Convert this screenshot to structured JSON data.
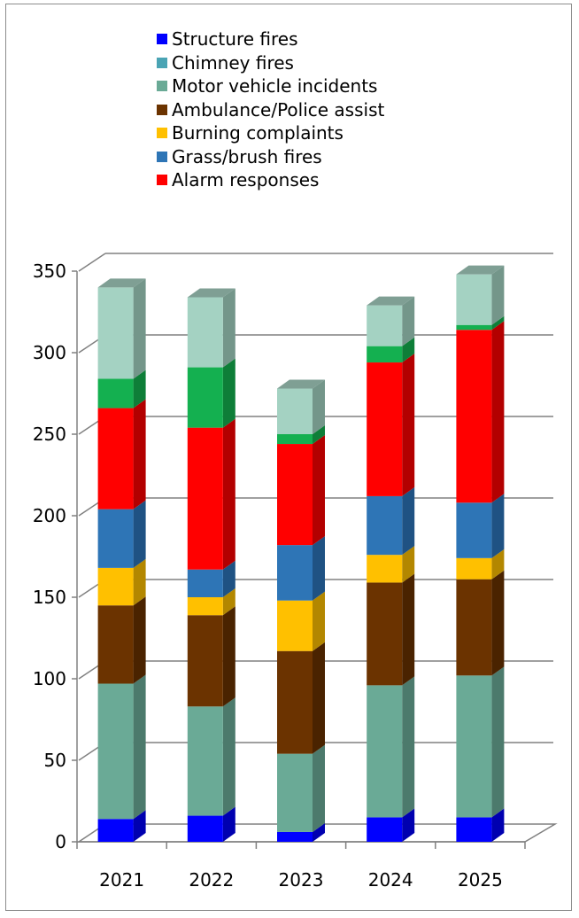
{
  "chart_data": {
    "type": "bar",
    "stacked": true,
    "three_d": true,
    "title": "",
    "xlabel": "",
    "ylabel": "",
    "categories": [
      "2021",
      "2022",
      "2023",
      "2024",
      "2025"
    ],
    "ylim": [
      0,
      350
    ],
    "yticks": [
      "0",
      "50",
      "100",
      "150",
      "200",
      "250",
      "300",
      "350"
    ],
    "grid": true,
    "legend_position": "top",
    "series": [
      {
        "name": "Structure fires",
        "color": "#0000ff",
        "side_color": "#0000b0",
        "values": [
          14,
          16,
          6,
          15,
          15
        ]
      },
      {
        "name": "Chimney fires",
        "color": "#4aa4b4",
        "side_color": "#357a86",
        "values": [
          0,
          0,
          0,
          0,
          0
        ]
      },
      {
        "name": "Motor vehicle incidents",
        "color": "#6aaa96",
        "side_color": "#4c7a6c",
        "values": [
          83,
          67,
          48,
          81,
          87
        ]
      },
      {
        "name": "Ambulance/Police assist",
        "color": "#6b3300",
        "side_color": "#4a2300",
        "values": [
          48,
          56,
          63,
          63,
          59
        ]
      },
      {
        "name": "Burning complaints",
        "color": "#ffc000",
        "side_color": "#b38700",
        "values": [
          23,
          11,
          31,
          17,
          13
        ]
      },
      {
        "name": "Grass/brush fires",
        "color": "#2e75b6",
        "side_color": "#1f5283",
        "values": [
          36,
          17,
          34,
          36,
          34
        ]
      },
      {
        "name": "Alarm responses",
        "color": "#ff0000",
        "side_color": "#b30000",
        "values": [
          62,
          87,
          62,
          82,
          106
        ]
      },
      {
        "name": "",
        "color": "#14b050",
        "side_color": "#0e7e38",
        "values": [
          18,
          37,
          6,
          10,
          3
        ]
      },
      {
        "name": "",
        "color": "#a4d2c2",
        "side_color": "#74968a",
        "values": [
          56,
          43,
          28,
          25,
          31
        ]
      }
    ]
  },
  "colors": {
    "grid": "#808080",
    "frame": "#8c8c8c",
    "top_face": "#7f9f94"
  }
}
